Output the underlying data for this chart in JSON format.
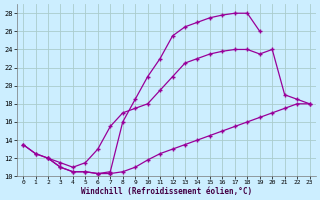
{
  "xlabel": "Windchill (Refroidissement éolien,°C)",
  "bg_color": "#cceeff",
  "grid_color": "#aacccc",
  "line_color": "#990099",
  "xlim": [
    -0.5,
    23.5
  ],
  "ylim": [
    10,
    29
  ],
  "xticks": [
    0,
    1,
    2,
    3,
    4,
    5,
    6,
    7,
    8,
    9,
    10,
    11,
    12,
    13,
    14,
    15,
    16,
    17,
    18,
    19,
    20,
    21,
    22,
    23
  ],
  "yticks": [
    10,
    12,
    14,
    16,
    18,
    20,
    22,
    24,
    26,
    28
  ],
  "line1_x": [
    0,
    1,
    2,
    3,
    4,
    5,
    6,
    7,
    8,
    9,
    10,
    11,
    12,
    13,
    14,
    15,
    16,
    17,
    18,
    19
  ],
  "line1_y": [
    13.5,
    12.5,
    12.0,
    11.0,
    10.5,
    10.5,
    10.3,
    10.5,
    16.0,
    18.5,
    21.0,
    23.0,
    25.5,
    26.5,
    27.0,
    27.5,
    27.8,
    28.0,
    28.0,
    26.0
  ],
  "line2_x": [
    0,
    1,
    2,
    3,
    4,
    5,
    6,
    7,
    8,
    9,
    10,
    11,
    12,
    13,
    14,
    15,
    16,
    17,
    18,
    19,
    20,
    21,
    22,
    23
  ],
  "line2_y": [
    13.5,
    12.5,
    12.0,
    11.0,
    10.5,
    10.5,
    10.3,
    10.3,
    10.5,
    11.0,
    11.8,
    12.5,
    13.0,
    13.5,
    14.0,
    14.5,
    15.0,
    15.5,
    16.0,
    16.5,
    17.0,
    17.5,
    18.0,
    18.0
  ],
  "line3_x": [
    2,
    3,
    4,
    5,
    6,
    7,
    8,
    9,
    10,
    11,
    12,
    13,
    14,
    15,
    16,
    17,
    18,
    19,
    20,
    21,
    22,
    23
  ],
  "line3_y": [
    12.0,
    11.5,
    11.0,
    11.5,
    13.0,
    15.5,
    17.0,
    17.5,
    18.0,
    19.5,
    21.0,
    22.5,
    23.0,
    23.5,
    23.8,
    24.0,
    24.0,
    23.5,
    24.0,
    19.0,
    18.5,
    18.0
  ]
}
